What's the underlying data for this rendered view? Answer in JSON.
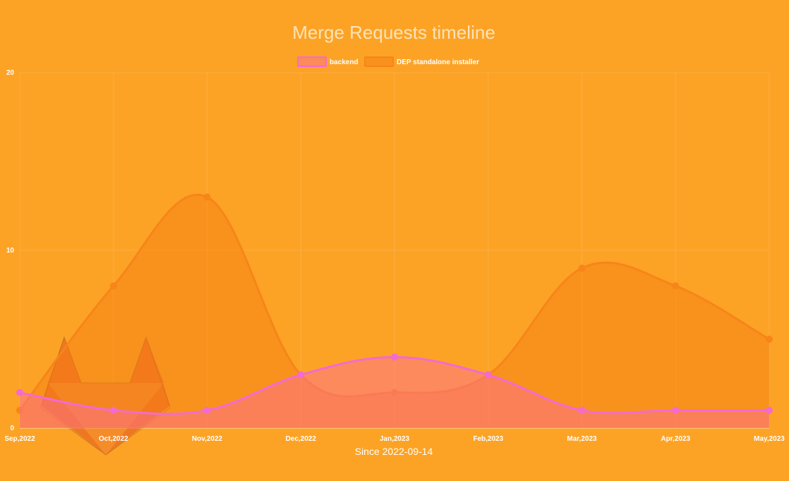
{
  "colors": {
    "background": "#fca326",
    "backend_line": "#f36bd0",
    "backend_fill": "rgba(252,109,160,0.45)",
    "installer_line": "#f78519",
    "installer_fill": "rgba(246,125,20,0.45)",
    "logo": "#e8541f"
  },
  "logo_icon": "gitlab-logo-icon",
  "chart_data": {
    "type": "area",
    "title": "Merge Requests timeline",
    "xlabel": "Since 2022-09-14",
    "ylabel": "",
    "categories": [
      "Sep,2022",
      "Oct,2022",
      "Nov,2022",
      "Dec,2022",
      "Jan,2023",
      "Feb,2023",
      "Mar,2023",
      "Apr,2023",
      "May,2023"
    ],
    "ylim": [
      0,
      20
    ],
    "yticks": [
      "0",
      "10",
      "20"
    ],
    "grid": true,
    "legend_position": "top",
    "series": [
      {
        "name": "backend",
        "values": [
          2,
          1,
          1,
          3,
          4,
          3,
          1,
          1,
          1
        ]
      },
      {
        "name": "DEP standalone installer",
        "values": [
          1,
          8,
          13,
          3,
          2,
          3,
          9,
          8,
          5
        ]
      }
    ]
  }
}
